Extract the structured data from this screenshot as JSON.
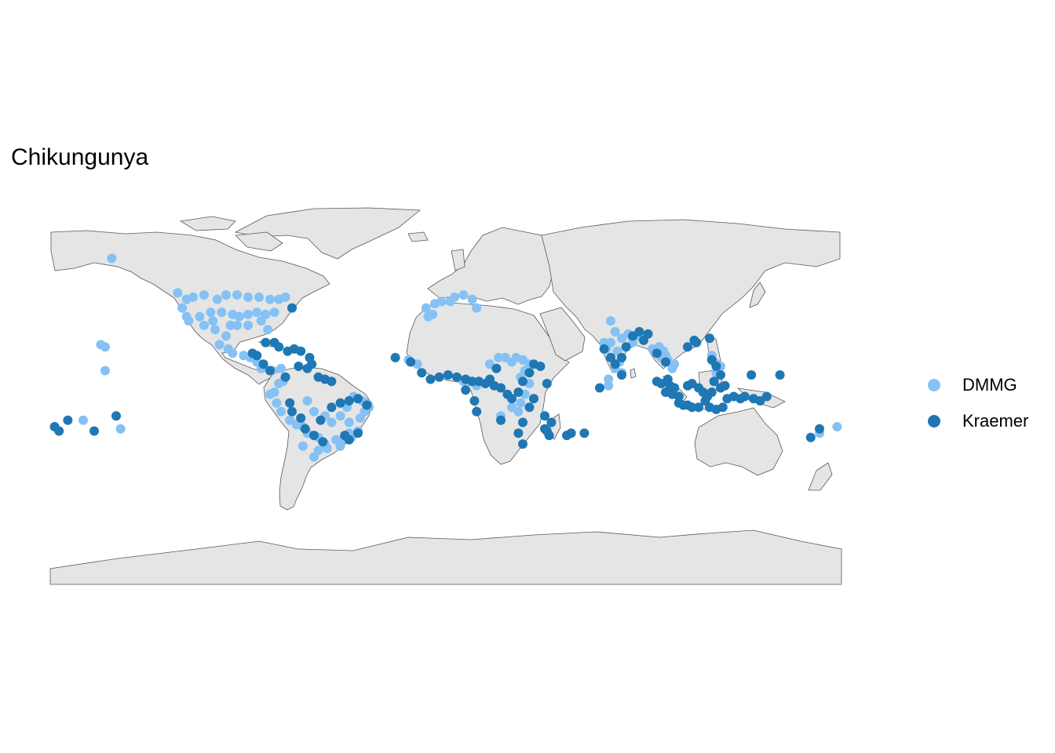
{
  "title": "Chikungunya",
  "colors": {
    "land": "#e5e5e5",
    "border": "#595959",
    "DMMG": "#85c1f5",
    "Kraemer": "#1f77b4"
  },
  "legend": [
    {
      "name": "DMMG",
      "color": "#85c1f5"
    },
    {
      "name": "Kraemer",
      "color": "#1f77b4"
    }
  ],
  "map_data": {
    "projection": "equirectangular",
    "lon_range": [
      -180,
      180
    ],
    "lat_range": [
      -90,
      84
    ],
    "points": {
      "DMMG": [
        [
          -152,
          61
        ],
        [
          -122,
          45
        ],
        [
          -118,
          42
        ],
        [
          -115,
          43
        ],
        [
          -110,
          44
        ],
        [
          -104,
          42
        ],
        [
          -100,
          44
        ],
        [
          -95,
          44
        ],
        [
          -90,
          43
        ],
        [
          -85,
          43
        ],
        [
          -80,
          42
        ],
        [
          -76,
          42
        ],
        [
          -73,
          43
        ],
        [
          -120,
          38
        ],
        [
          -118,
          34
        ],
        [
          -112,
          34
        ],
        [
          -107,
          36
        ],
        [
          -102,
          36
        ],
        [
          -97,
          35
        ],
        [
          -94,
          34
        ],
        [
          -90,
          35
        ],
        [
          -86,
          36
        ],
        [
          -82,
          35
        ],
        [
          -78,
          36
        ],
        [
          -98,
          30
        ],
        [
          -95,
          30
        ],
        [
          -90,
          30
        ],
        [
          -84,
          32
        ],
        [
          -81,
          28
        ],
        [
          -106,
          32
        ],
        [
          -117,
          32
        ],
        [
          -110,
          30
        ],
        [
          -105,
          28
        ],
        [
          -100,
          25
        ],
        [
          -103,
          21
        ],
        [
          -99,
          19
        ],
        [
          -97,
          17
        ],
        [
          -92,
          16
        ],
        [
          -89,
          15
        ],
        [
          -86,
          13
        ],
        [
          -84,
          10
        ],
        [
          -79,
          9
        ],
        [
          -75,
          10
        ],
        [
          -74,
          4
        ],
        [
          -76,
          3
        ],
        [
          -78,
          -1
        ],
        [
          -80,
          -2
        ],
        [
          -77,
          -6
        ],
        [
          -75,
          -10
        ],
        [
          -71,
          -14
        ],
        [
          -68,
          -16
        ],
        [
          -65,
          -17
        ],
        [
          -63,
          -20
        ],
        [
          -58,
          -22
        ],
        [
          -55,
          -25
        ],
        [
          -50,
          -23
        ],
        [
          -47,
          -23
        ],
        [
          -44,
          -20
        ],
        [
          -43,
          -22
        ],
        [
          -40,
          -19
        ],
        [
          -39,
          -13
        ],
        [
          -37,
          -10
        ],
        [
          -35,
          -8
        ],
        [
          -38,
          -5
        ],
        [
          -42,
          -3
        ],
        [
          -45,
          -8
        ],
        [
          -48,
          -12
        ],
        [
          -52,
          -15
        ],
        [
          -55,
          -12
        ],
        [
          -60,
          -10
        ],
        [
          -63,
          -5
        ],
        [
          -54,
          -27
        ],
        [
          -58,
          -28
        ],
        [
          -60,
          -31
        ],
        [
          -65,
          -26
        ],
        [
          -48,
          -26
        ],
        [
          -44,
          -15
        ],
        [
          -36,
          -6
        ],
        [
          -157,
          21
        ],
        [
          -155,
          20
        ],
        [
          -155,
          9
        ],
        [
          -165,
          -14
        ],
        [
          -9,
          38
        ],
        [
          -5,
          40
        ],
        [
          -2,
          41
        ],
        [
          2,
          41
        ],
        [
          4,
          43
        ],
        [
          8,
          44
        ],
        [
          12,
          42
        ],
        [
          14,
          38
        ],
        [
          -17,
          14
        ],
        [
          -13,
          12
        ],
        [
          20,
          12
        ],
        [
          24,
          15
        ],
        [
          27,
          15
        ],
        [
          30,
          13
        ],
        [
          32,
          15
        ],
        [
          35,
          14
        ],
        [
          38,
          12
        ],
        [
          36,
          9
        ],
        [
          34,
          6
        ],
        [
          38,
          3
        ],
        [
          36,
          -2
        ],
        [
          34,
          -6
        ],
        [
          30,
          -8
        ],
        [
          25,
          -12
        ],
        [
          8,
          4
        ],
        [
          11,
          4
        ],
        [
          14,
          2
        ],
        [
          73,
          19
        ],
        [
          75,
          22
        ],
        [
          77,
          27
        ],
        [
          80,
          24
        ],
        [
          83,
          26
        ],
        [
          78,
          18
        ],
        [
          79,
          13
        ],
        [
          77,
          10
        ],
        [
          80,
          8
        ],
        [
          85,
          22
        ],
        [
          88,
          25
        ],
        [
          72,
          22
        ],
        [
          75,
          32
        ],
        [
          98,
          15
        ],
        [
          100,
          16
        ],
        [
          101,
          14
        ],
        [
          103,
          10
        ],
        [
          104,
          12
        ],
        [
          99,
          18
        ],
        [
          97,
          20
        ],
        [
          94,
          19
        ],
        [
          121,
          16
        ],
        [
          122,
          13
        ],
        [
          124,
          10
        ],
        [
          123,
          8
        ],
        [
          125,
          11
        ],
        [
          74,
          5
        ],
        [
          74,
          2
        ],
        [
          178,
          -17
        ],
        [
          170,
          -20
        ],
        [
          -148,
          -18
        ],
        [
          -8,
          34
        ],
        [
          -6,
          35
        ],
        [
          33,
          -10
        ]
      ],
      "Kraemer": [
        [
          -178,
          -17
        ],
        [
          -176,
          -19
        ],
        [
          -172,
          -14
        ],
        [
          -160,
          -19
        ],
        [
          -150,
          -12
        ],
        [
          -70,
          38
        ],
        [
          -66,
          18
        ],
        [
          -69,
          19
        ],
        [
          -72,
          18
        ],
        [
          -76,
          20
        ],
        [
          -62,
          15
        ],
        [
          -61,
          12
        ],
        [
          -58,
          6
        ],
        [
          -55,
          5
        ],
        [
          -52,
          4
        ],
        [
          -63,
          10
        ],
        [
          -67,
          11
        ],
        [
          -80,
          9
        ],
        [
          -83,
          12
        ],
        [
          -86,
          16
        ],
        [
          -88,
          17
        ],
        [
          -78,
          22
        ],
        [
          -82,
          22
        ],
        [
          -73,
          6
        ],
        [
          -71,
          -6
        ],
        [
          -70,
          -10
        ],
        [
          -66,
          -13
        ],
        [
          -64,
          -18
        ],
        [
          -60,
          -21
        ],
        [
          -56,
          -24
        ],
        [
          -52,
          -8
        ],
        [
          -48,
          -6
        ],
        [
          -44,
          -5
        ],
        [
          -40,
          -4
        ],
        [
          -36,
          -7
        ],
        [
          -44,
          -23
        ],
        [
          -46,
          -21
        ],
        [
          -40,
          -20
        ],
        [
          -57,
          -14
        ],
        [
          -23,
          15
        ],
        [
          -16,
          13
        ],
        [
          -11,
          8
        ],
        [
          -7,
          5
        ],
        [
          -3,
          6
        ],
        [
          1,
          7
        ],
        [
          5,
          6
        ],
        [
          9,
          5
        ],
        [
          12,
          4
        ],
        [
          15,
          4
        ],
        [
          18,
          3
        ],
        [
          22,
          2
        ],
        [
          25,
          1
        ],
        [
          28,
          -2
        ],
        [
          30,
          -4
        ],
        [
          33,
          -1
        ],
        [
          35,
          4
        ],
        [
          38,
          8
        ],
        [
          40,
          12
        ],
        [
          43,
          11
        ],
        [
          46,
          3
        ],
        [
          40,
          -4
        ],
        [
          38,
          -8
        ],
        [
          35,
          -15
        ],
        [
          45,
          -12
        ],
        [
          48,
          -15
        ],
        [
          46,
          -19
        ],
        [
          47,
          -21
        ],
        [
          55,
          -21
        ],
        [
          57,
          -20
        ],
        [
          63,
          -20
        ],
        [
          9,
          0
        ],
        [
          13,
          -5
        ],
        [
          14,
          -10
        ],
        [
          25,
          -14
        ],
        [
          33,
          -20
        ],
        [
          20,
          5
        ],
        [
          23,
          10
        ],
        [
          35,
          -25
        ],
        [
          45,
          -18
        ],
        [
          72,
          19
        ],
        [
          75,
          15
        ],
        [
          77,
          12
        ],
        [
          80,
          15
        ],
        [
          82,
          20
        ],
        [
          85,
          25
        ],
        [
          88,
          27
        ],
        [
          90,
          23
        ],
        [
          92,
          26
        ],
        [
          96,
          17
        ],
        [
          100,
          13
        ],
        [
          102,
          2
        ],
        [
          104,
          1
        ],
        [
          106,
          -6
        ],
        [
          108,
          -7
        ],
        [
          110,
          -7
        ],
        [
          112,
          -8
        ],
        [
          115,
          -8
        ],
        [
          118,
          -5
        ],
        [
          120,
          -8
        ],
        [
          123,
          -9
        ],
        [
          126,
          -8
        ],
        [
          128,
          -4
        ],
        [
          131,
          -3
        ],
        [
          134,
          -4
        ],
        [
          136,
          -3
        ],
        [
          140,
          -4
        ],
        [
          143,
          -5
        ],
        [
          146,
          -3
        ],
        [
          100,
          -1
        ],
        [
          98,
          3
        ],
        [
          96,
          4
        ],
        [
          101,
          5
        ],
        [
          103,
          -2
        ],
        [
          106,
          -3
        ],
        [
          110,
          2
        ],
        [
          112,
          3
        ],
        [
          115,
          1
        ],
        [
          117,
          -1
        ],
        [
          119,
          -3
        ],
        [
          121,
          -1
        ],
        [
          122,
          4
        ],
        [
          125,
          1
        ],
        [
          127,
          2
        ],
        [
          114,
          22
        ],
        [
          113,
          23
        ],
        [
          110,
          20
        ],
        [
          120,
          24
        ],
        [
          121,
          14
        ],
        [
          123,
          11
        ],
        [
          125,
          7
        ],
        [
          139,
          7
        ],
        [
          152,
          7
        ],
        [
          166,
          -22
        ],
        [
          170,
          -18
        ],
        [
          80,
          7
        ],
        [
          70,
          1
        ]
      ]
    }
  }
}
